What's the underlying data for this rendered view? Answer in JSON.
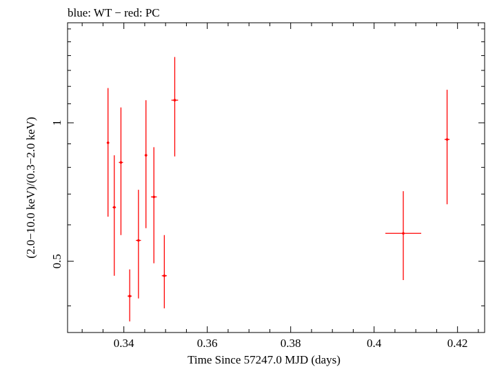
{
  "chart_data": {
    "type": "scatter",
    "title": "blue: WT − red: PC",
    "xlabel": "Time Since 57247.0 MJD (days)",
    "ylabel": "(2.0−10.0 keV)/(0.3−2.0 keV)",
    "xlim": [
      0.3265,
      0.4265
    ],
    "ylim": [
      0.35,
      1.65
    ],
    "y_scale": "log",
    "x_ticks": [
      "0.34",
      "0.36",
      "0.38",
      "0.4",
      "0.42"
    ],
    "x_tick_values": [
      0.34,
      0.36,
      0.38,
      0.4,
      0.42
    ],
    "y_ticks": [
      "0.5",
      "1"
    ],
    "y_tick_values": [
      0.5,
      1.0
    ],
    "series": [
      {
        "color": "#ff0000",
        "points": [
          {
            "x": 0.3362,
            "y": 0.905,
            "xerr": 0.0003,
            "ylo": 0.625,
            "yhi": 1.19
          },
          {
            "x": 0.3377,
            "y": 0.655,
            "xerr": 0.0004,
            "ylo": 0.465,
            "yhi": 0.85
          },
          {
            "x": 0.3393,
            "y": 0.82,
            "xerr": 0.0005,
            "ylo": 0.57,
            "yhi": 1.08
          },
          {
            "x": 0.3414,
            "y": 0.42,
            "xerr": 0.0005,
            "ylo": 0.37,
            "yhi": 0.48
          },
          {
            "x": 0.3435,
            "y": 0.555,
            "xerr": 0.0006,
            "ylo": 0.415,
            "yhi": 0.715
          },
          {
            "x": 0.3453,
            "y": 0.85,
            "xerr": 0.0003,
            "ylo": 0.59,
            "yhi": 1.12
          },
          {
            "x": 0.3472,
            "y": 0.69,
            "xerr": 0.0007,
            "ylo": 0.495,
            "yhi": 0.885
          },
          {
            "x": 0.3497,
            "y": 0.465,
            "xerr": 0.0006,
            "ylo": 0.395,
            "yhi": 0.57
          },
          {
            "x": 0.3522,
            "y": 1.12,
            "xerr": 0.0008,
            "ylo": 0.845,
            "yhi": 1.39
          },
          {
            "x": 0.407,
            "y": 0.575,
            "xerr": 0.0043,
            "ylo": 0.455,
            "yhi": 0.71
          },
          {
            "x": 0.4175,
            "y": 0.92,
            "xerr": 0.0006,
            "ylo": 0.665,
            "yhi": 1.18
          }
        ]
      }
    ]
  }
}
